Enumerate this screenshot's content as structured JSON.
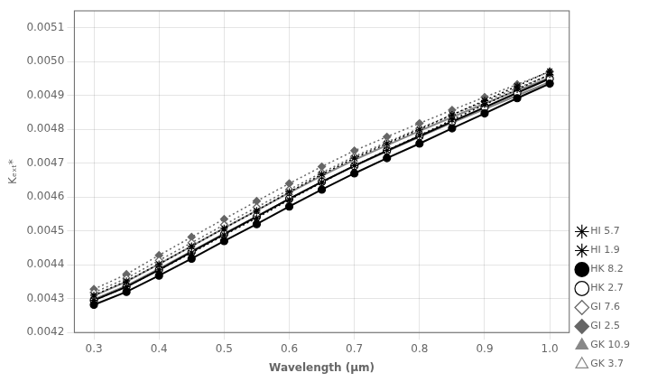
{
  "chart_data": {
    "type": "line",
    "x_label": "Wavelength (μm)",
    "y_label": "Kₑₓₜ*",
    "x": [
      0.3,
      0.35,
      0.4,
      0.45,
      0.5,
      0.55,
      0.6,
      0.65,
      0.7,
      0.75,
      0.8,
      0.85,
      0.9,
      0.95,
      1.0
    ],
    "xlim": [
      0.27,
      1.03
    ],
    "xticks": [
      0.3,
      0.4,
      0.5,
      0.6,
      0.7,
      0.8,
      0.9,
      {
        "value": 1.0,
        "label": "1.0"
      }
    ],
    "ylim": [
      0.0042,
      0.00515
    ],
    "yticks": [
      0.0042,
      0.0043,
      0.0044,
      0.0045,
      0.0046,
      0.0047,
      0.0048,
      0.0049,
      {
        "value": 0.005,
        "label": "0.0050"
      },
      0.0051
    ],
    "grid": true,
    "legend": "lower right",
    "series": [
      {
        "name": "HI 5.7",
        "color": "#000000",
        "marker": "star",
        "line_style": "dotted",
        "values": [
          0.004295,
          0.004335,
          0.004385,
          0.004435,
          0.004488,
          0.004538,
          0.004592,
          0.004643,
          0.004693,
          0.004738,
          0.004782,
          0.004828,
          0.004873,
          0.004918,
          0.004962
        ]
      },
      {
        "name": "HI 1.9",
        "color": "#000000",
        "marker": "star_open",
        "line_style": "dotted",
        "values": [
          0.00431,
          0.004352,
          0.004402,
          0.004455,
          0.004508,
          0.00456,
          0.004615,
          0.004667,
          0.004715,
          0.004758,
          0.0048,
          0.004843,
          0.004885,
          0.004928,
          0.004972
        ]
      },
      {
        "name": "HK 8.2",
        "color": "#000000",
        "marker": "circle",
        "line_style": "solid",
        "values": [
          0.004282,
          0.00432,
          0.004368,
          0.004418,
          0.00447,
          0.00452,
          0.004572,
          0.004622,
          0.00467,
          0.004715,
          0.004758,
          0.004803,
          0.004847,
          0.004892,
          0.004935
        ]
      },
      {
        "name": "HK 2.7",
        "color": "#000000",
        "marker": "circle_open",
        "line_style": "solid",
        "values": [
          0.004295,
          0.004335,
          0.004385,
          0.004438,
          0.00449,
          0.004542,
          0.004595,
          0.004645,
          0.004692,
          0.004737,
          0.00478,
          0.004823,
          0.004865,
          0.004908,
          0.00495
        ]
      },
      {
        "name": "GI 7.6",
        "color": "#666666",
        "marker": "diamond_open",
        "line_style": "dotted",
        "values": [
          0.004318,
          0.00436,
          0.004413,
          0.004465,
          0.004518,
          0.00457,
          0.004622,
          0.004672,
          0.00472,
          0.004762,
          0.004803,
          0.004843,
          0.004882,
          0.004922,
          0.00496
        ]
      },
      {
        "name": "GI 2.5",
        "color": "#666666",
        "marker": "diamond",
        "line_style": "dotted",
        "values": [
          0.004328,
          0.004372,
          0.004428,
          0.004482,
          0.004535,
          0.004588,
          0.00464,
          0.00469,
          0.004737,
          0.004778,
          0.004818,
          0.004857,
          0.004895,
          0.004933,
          0.00497
        ]
      },
      {
        "name": "GK 10.9",
        "color": "#888888",
        "marker": "triangle",
        "line_style": "solid",
        "values": [
          0.004298,
          0.004338,
          0.004388,
          0.00444,
          0.004492,
          0.004543,
          0.004595,
          0.004645,
          0.004692,
          0.004735,
          0.004778,
          0.00482,
          0.00486,
          0.0049,
          0.00494
        ]
      },
      {
        "name": "GK 3.7",
        "color": "#888888",
        "marker": "triangle_open",
        "line_style": "solid",
        "values": [
          0.004308,
          0.00435,
          0.004402,
          0.004455,
          0.004508,
          0.00456,
          0.004613,
          0.004663,
          0.00471,
          0.004753,
          0.004795,
          0.004836,
          0.004876,
          0.004915,
          0.004953
        ]
      }
    ]
  }
}
